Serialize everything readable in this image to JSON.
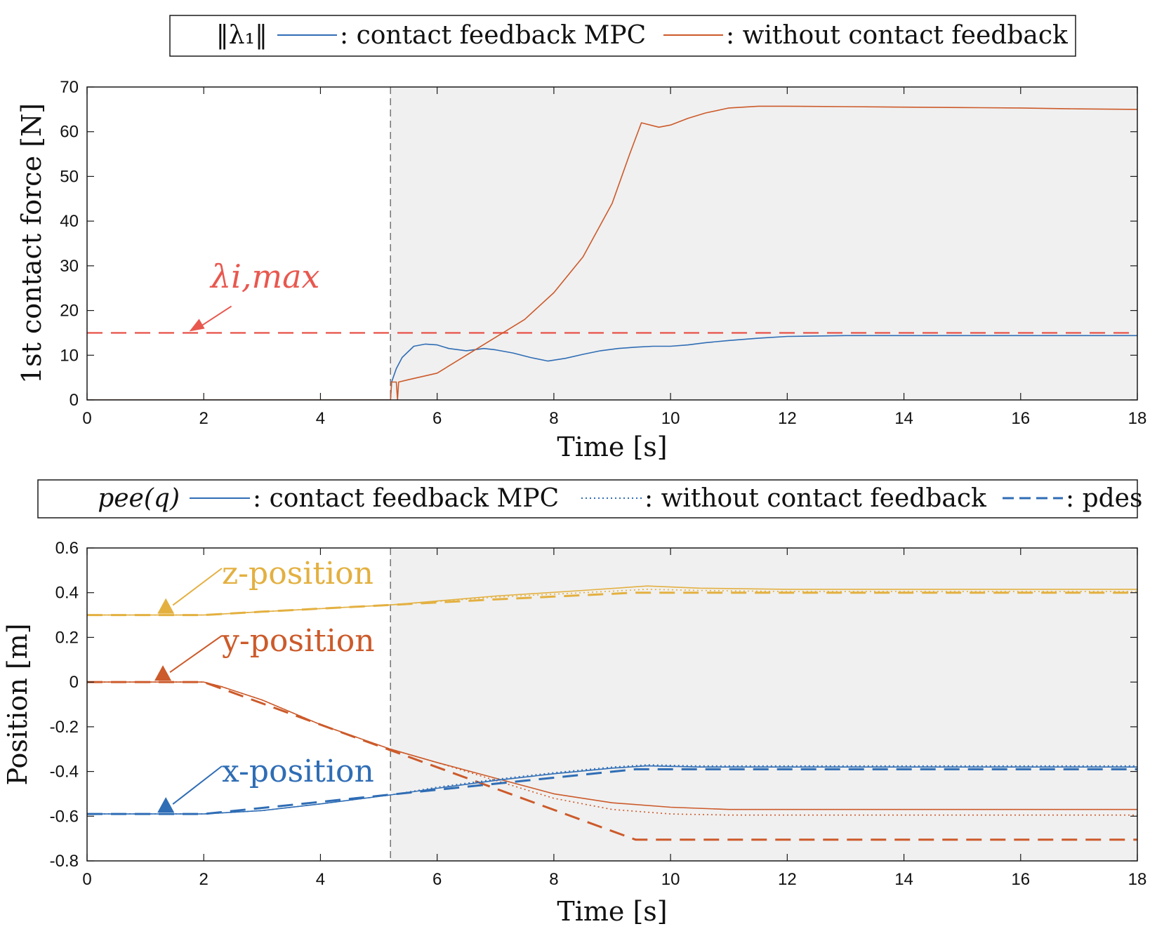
{
  "colors": {
    "blue": "#2f6db5",
    "orange": "#cc5a2a",
    "gold": "#e3b040",
    "limit": "#e8584f",
    "contact_region": "#f0f0f0",
    "axes": "#1a1a1a"
  },
  "chart_data": [
    {
      "type": "line",
      "legend": {
        "placement": "top",
        "title": "‖λ₁‖",
        "entries": [
          {
            "series": "mpc",
            "label": ": contact feedback MPC"
          },
          {
            "series": "nofb",
            "label": ": without contact feedback"
          }
        ]
      },
      "xlabel": "Time [s]",
      "ylabel": "1st contact force [N]",
      "xlim": [
        0,
        18
      ],
      "ylim": [
        0,
        70
      ],
      "xticks": [
        0,
        2,
        4,
        6,
        8,
        10,
        12,
        14,
        16,
        18
      ],
      "yticks": [
        0,
        10,
        20,
        30,
        40,
        50,
        60,
        70
      ],
      "grid": false,
      "contact_start": 5.2,
      "limit": {
        "value": 15,
        "label": "λi,max",
        "arrow_x": 1.8
      },
      "series": [
        {
          "id": "mpc",
          "color": "blue",
          "style": "solid",
          "x": [
            0,
            5.2,
            5.22,
            5.3,
            5.4,
            5.6,
            5.8,
            6.0,
            6.2,
            6.5,
            6.8,
            7.0,
            7.3,
            7.6,
            7.9,
            8.2,
            8.5,
            8.8,
            9.1,
            9.4,
            9.7,
            10.0,
            10.3,
            10.6,
            11.0,
            11.5,
            12.0,
            13.0,
            14.0,
            15.0,
            16.0,
            17.0,
            18.0
          ],
          "y": [
            0,
            0,
            4,
            7,
            9.5,
            12,
            12.5,
            12.3,
            11.5,
            11,
            11.5,
            11.2,
            10.5,
            9.5,
            8.7,
            9.3,
            10.2,
            11,
            11.5,
            11.8,
            12,
            12,
            12.3,
            12.8,
            13.3,
            13.8,
            14.2,
            14.4,
            14.4,
            14.4,
            14.4,
            14.4,
            14.4
          ]
        },
        {
          "id": "nofb",
          "color": "orange",
          "style": "solid",
          "x": [
            0,
            5.2,
            5.22,
            5.3,
            5.32,
            5.34,
            5.5,
            6.0,
            6.5,
            7.0,
            7.5,
            8.0,
            8.5,
            9.0,
            9.3,
            9.5,
            9.8,
            10.0,
            10.3,
            10.6,
            11.0,
            11.5,
            12.0,
            13.0,
            14.0,
            15.0,
            16.0,
            17.0,
            18.0
          ],
          "y": [
            0,
            0,
            4,
            4,
            0,
            4,
            4.5,
            6,
            10,
            14,
            18,
            24,
            32,
            44,
            55,
            62,
            61,
            61.5,
            63,
            64.2,
            65.3,
            65.7,
            65.7,
            65.6,
            65.5,
            65.4,
            65.3,
            65.1,
            65
          ]
        }
      ]
    },
    {
      "type": "line",
      "legend": {
        "placement": "top",
        "title": "pee(q)",
        "entries": [
          {
            "series": "mpc",
            "label": ": contact feedback MPC"
          },
          {
            "series": "nofb",
            "label": ": without contact feedback"
          },
          {
            "series": "des",
            "label": ": pdes"
          }
        ]
      },
      "xlabel": "Time [s]",
      "ylabel": "Position [m]",
      "xlim": [
        0,
        18
      ],
      "ylim": [
        -0.8,
        0.6
      ],
      "xticks": [
        0,
        2,
        4,
        6,
        8,
        10,
        12,
        14,
        16,
        18
      ],
      "yticks": [
        -0.8,
        -0.6,
        -0.4,
        -0.2,
        0,
        0.2,
        0.4,
        0.6
      ],
      "ytick_labels": [
        "-0.8",
        "-0.6",
        "-0.4",
        "-0.2",
        "0",
        "0.2",
        "0.4",
        "0.6"
      ],
      "grid": false,
      "contact_start": 5.2,
      "annotations": [
        {
          "label": "z-position",
          "color": "gold",
          "arrow_x": 1.35,
          "arrow_y": 0.3
        },
        {
          "label": "y-position",
          "color": "orange",
          "arrow_x": 1.3,
          "arrow_y": 0.0
        },
        {
          "label": "x-position",
          "color": "blue",
          "arrow_x": 1.35,
          "arrow_y": -0.59
        }
      ],
      "series": [
        {
          "id": "z_des",
          "color": "gold",
          "style": "dashed",
          "x": [
            0,
            2,
            3,
            5.2,
            7,
            9.4,
            18
          ],
          "y": [
            0.3,
            0.3,
            0.315,
            0.345,
            0.37,
            0.4,
            0.4
          ]
        },
        {
          "id": "z_mpc",
          "color": "gold",
          "style": "solid",
          "x": [
            0,
            2,
            3,
            5.2,
            7,
            8.5,
            9.6,
            10.5,
            12,
            18
          ],
          "y": [
            0.3,
            0.3,
            0.315,
            0.345,
            0.385,
            0.41,
            0.43,
            0.42,
            0.415,
            0.415
          ]
        },
        {
          "id": "z_nofb",
          "color": "gold",
          "style": "dotted",
          "x": [
            0,
            2,
            3,
            5.2,
            7,
            8.5,
            9.6,
            10.5,
            12,
            18
          ],
          "y": [
            0.3,
            0.3,
            0.315,
            0.345,
            0.38,
            0.4,
            0.415,
            0.41,
            0.405,
            0.405
          ]
        },
        {
          "id": "y_des",
          "color": "orange",
          "style": "dashed",
          "x": [
            0,
            2,
            9.4,
            18
          ],
          "y": [
            0,
            0,
            -0.705,
            -0.705
          ]
        },
        {
          "id": "y_mpc",
          "color": "orange",
          "style": "solid",
          "x": [
            0,
            2,
            2.3,
            3,
            4,
            5.2,
            6,
            7,
            8,
            9,
            10,
            11,
            12,
            18
          ],
          "y": [
            0,
            0,
            -0.02,
            -0.08,
            -0.19,
            -0.3,
            -0.36,
            -0.43,
            -0.5,
            -0.54,
            -0.56,
            -0.57,
            -0.57,
            -0.57
          ]
        },
        {
          "id": "y_nofb",
          "color": "orange",
          "style": "dotted",
          "x": [
            0,
            2,
            2.3,
            3,
            4,
            5.2,
            6,
            7,
            8,
            9,
            10,
            11,
            12,
            18
          ],
          "y": [
            0,
            0,
            -0.02,
            -0.08,
            -0.19,
            -0.3,
            -0.36,
            -0.44,
            -0.52,
            -0.57,
            -0.59,
            -0.595,
            -0.595,
            -0.595
          ]
        },
        {
          "id": "x_des",
          "color": "blue",
          "style": "dashed",
          "x": [
            0,
            2,
            9.4,
            18
          ],
          "y": [
            -0.59,
            -0.59,
            -0.39,
            -0.39
          ]
        },
        {
          "id": "x_mpc",
          "color": "blue",
          "style": "solid",
          "x": [
            0,
            2,
            3,
            4,
            5.2,
            6,
            7,
            8,
            9,
            9.6,
            10.5,
            12,
            18
          ],
          "y": [
            -0.59,
            -0.59,
            -0.575,
            -0.545,
            -0.505,
            -0.475,
            -0.44,
            -0.41,
            -0.385,
            -0.375,
            -0.38,
            -0.38,
            -0.38
          ]
        },
        {
          "id": "x_nofb",
          "color": "blue",
          "style": "dotted",
          "x": [
            0,
            2,
            3,
            4,
            5.2,
            6,
            7,
            8,
            9,
            9.6,
            10.5,
            12,
            18
          ],
          "y": [
            -0.59,
            -0.59,
            -0.575,
            -0.545,
            -0.505,
            -0.47,
            -0.435,
            -0.405,
            -0.38,
            -0.37,
            -0.375,
            -0.375,
            -0.375
          ]
        }
      ]
    }
  ]
}
